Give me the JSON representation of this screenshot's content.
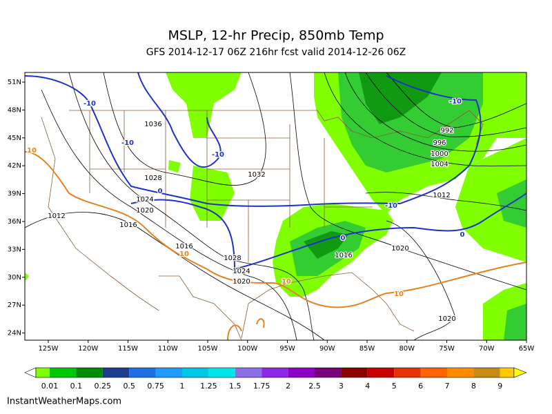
{
  "header": {
    "title": "MSLP, 12-hr Precip, 850mb Temp",
    "subtitle": "GFS 2014-12-17 06Z 216hr fcst valid 2014-12-26 06Z"
  },
  "map": {
    "lat_labels": [
      "51N",
      "48N",
      "45N",
      "42N",
      "39N",
      "36N",
      "33N",
      "30N",
      "27N",
      "24N"
    ],
    "lon_labels": [
      "125W",
      "120W",
      "115W",
      "110W",
      "105W",
      "100W",
      "95W",
      "90W",
      "85W",
      "80W",
      "75W",
      "70W",
      "65W"
    ],
    "contour_labels": [
      "1036",
      "-10",
      "-10",
      "-10",
      "1032",
      "1028",
      "0",
      "1024",
      "1020",
      "1012",
      "1016",
      "1016",
      "10",
      "10",
      "1028",
      "1024",
      "1020",
      "10",
      "0",
      "1016",
      "1020",
      "-10",
      "1012",
      "1004",
      "1000",
      "996",
      "992",
      "-10",
      "0",
      "10",
      "1020"
    ]
  },
  "colorbar": {
    "labels": [
      "0.01",
      "0.1",
      "0.25",
      "0.5",
      "0.75",
      "1",
      "1.25",
      "1.5",
      "1.75",
      "2",
      "2.5",
      "3",
      "4",
      "5",
      "6",
      "7",
      "8",
      "9"
    ],
    "colors": [
      "#ffffff",
      "#80ff00",
      "#00c800",
      "#008c00",
      "#1e3c8c",
      "#1e6ee6",
      "#1e9bff",
      "#00c8e6",
      "#00e6e6",
      "#8c6ee6",
      "#8c28e6",
      "#8c00c8",
      "#780078",
      "#8c0000",
      "#c80000",
      "#e63200",
      "#ff6400",
      "#ff8c00",
      "#c88c14",
      "#ffc800",
      "#ffff00"
    ]
  },
  "footer": {
    "credit": "InstantWeatherMaps.com"
  }
}
